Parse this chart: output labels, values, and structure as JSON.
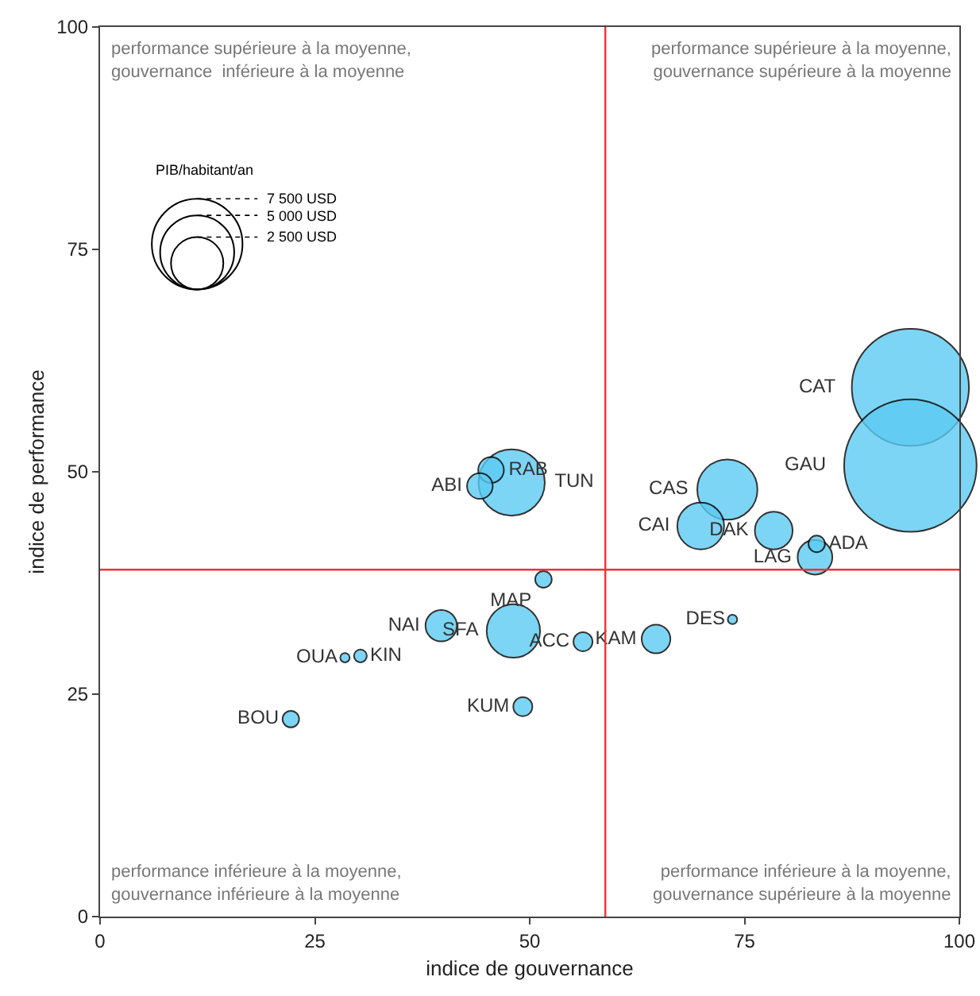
{
  "chart_data": {
    "type": "bubble",
    "xlabel": "indice de gouvernance",
    "ylabel": "indice de performance",
    "xlim": [
      0,
      100
    ],
    "ylim": [
      0,
      100
    ],
    "xticks": [
      0,
      25,
      50,
      75,
      100
    ],
    "yticks": [
      0,
      25,
      50,
      75,
      100
    ],
    "grid": false,
    "legend_title": "PIB/habitant/an",
    "size_legend": [
      {
        "value": 7500,
        "label": "7 500 USD"
      },
      {
        "value": 5000,
        "label": "5 000 USD"
      },
      {
        "value": 2500,
        "label": "2 500 USD"
      }
    ],
    "series": [
      {
        "color": "#5ccbf2",
        "x": [
          94.3,
          94.3,
          73.0,
          69.9,
          78.4,
          83.2,
          83.4,
          73.6,
          64.7,
          56.2,
          48.1,
          39.7,
          51.6,
          47.9,
          45.5,
          44.2,
          30.3,
          28.5,
          22.2,
          49.2
        ],
        "values": [
          59.5,
          50.7,
          48.0,
          43.9,
          43.4,
          40.4,
          41.9,
          33.4,
          31.2,
          30.9,
          32.1,
          32.7,
          37.9,
          48.8,
          50.2,
          48.4,
          29.3,
          29.1,
          22.2,
          23.6
        ],
        "sizes": [
          12500,
          16000,
          3300,
          2000,
          1300,
          1100,
          250,
          80,
          750,
          330,
          2600,
          900,
          250,
          4000,
          600,
          600,
          150,
          80,
          250,
          330
        ],
        "value_labels": [
          "CAT",
          "GAU",
          "CAS",
          "CAI",
          "DAK",
          "LAG",
          "ADA",
          "DES",
          "KAM",
          "ACC",
          "SFA",
          "NAI",
          "MAP",
          "TUN",
          "RAB",
          "ABI",
          "KIN",
          "OUA",
          "BOU",
          "KUM"
        ]
      }
    ],
    "ref_lines": [
      {
        "axis": "y",
        "value": 39,
        "color": "#ee3333"
      },
      {
        "axis": "x",
        "value": 58.8,
        "color": "#ee3333"
      }
    ],
    "annotations": [
      "performance supérieure à la moyenne,\ngouvernance  inférieure à la moyenne",
      "performance supérieure à la moyenne,\ngouvernance supérieure à la moyenne",
      "performance inférieure à la moyenne,\ngouvernance inférieure à la moyenne",
      "performance inférieure à la moyenne,\ngouvernance supérieure à la moyenne"
    ]
  }
}
